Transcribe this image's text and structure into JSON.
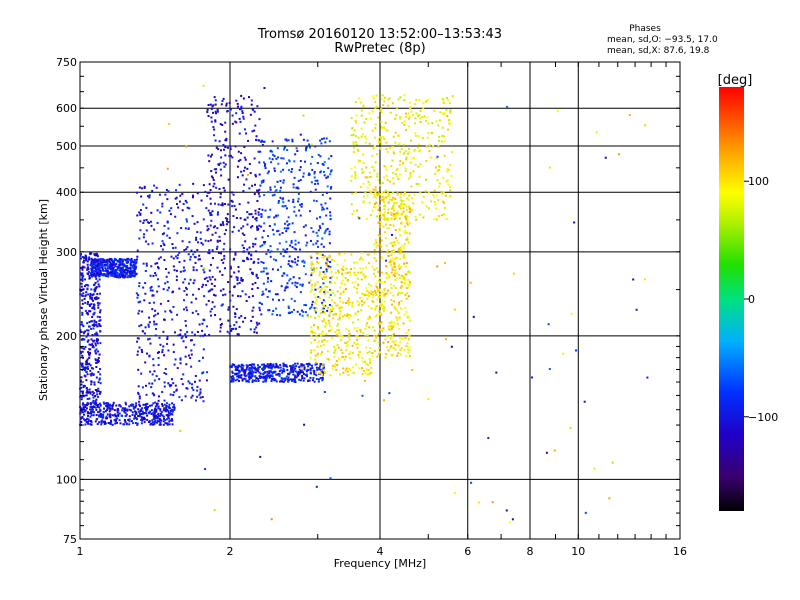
{
  "chart_data": {
    "type": "scatter",
    "title": "Tromsø 20160120 13:52:00–13:53:43",
    "subtitle": "RwPretec (8p)",
    "xlabel": "Frequency [MHz]",
    "ylabel": "Stationary phase Virtual Height [km]",
    "x_scale": "log",
    "y_scale": "log",
    "xlim": [
      1,
      16
    ],
    "ylim": [
      75,
      750
    ],
    "x_ticks": [
      1,
      2,
      4,
      6,
      8,
      10,
      16
    ],
    "x_tick_labels": [
      "1",
      "2",
      "4",
      "6",
      "8",
      "10",
      "16"
    ],
    "y_ticks": [
      75,
      100,
      200,
      300,
      400,
      500,
      600,
      750
    ],
    "y_tick_labels": [
      "75",
      "100",
      "200",
      "300",
      "400",
      "500",
      "600",
      "750"
    ],
    "grid": true,
    "phases_legend": {
      "heading": "Phases",
      "line_o": "mean, sd,O: −93.5, 17.0",
      "line_x": "mean, sd,X: 87.6, 19.8"
    },
    "colorbar": {
      "unit_label": "[deg]",
      "range": [
        -180,
        180
      ],
      "tick_values": [
        100,
        0,
        -100
      ],
      "tick_labels": [
        "100",
        "0",
        "−100"
      ],
      "colormap": "rainbow"
    },
    "traces": [
      {
        "freq_range": [
          1.0,
          1.55
        ],
        "height_range": [
          130,
          145
        ],
        "phase": -100
      },
      {
        "freq_range": [
          1.0,
          1.1
        ],
        "height_range": [
          140,
          300
        ],
        "phase": -105
      },
      {
        "freq_range": [
          1.05,
          1.3
        ],
        "height_range": [
          265,
          290
        ],
        "phase": -95
      },
      {
        "freq_range": [
          1.3,
          1.8
        ],
        "height_range": [
          145,
          420
        ],
        "phase": -100
      },
      {
        "freq_range": [
          1.8,
          2.3
        ],
        "height_range": [
          200,
          640
        ],
        "phase": -110
      },
      {
        "freq_range": [
          2.0,
          3.1
        ],
        "height_range": [
          160,
          175
        ],
        "phase": -95
      },
      {
        "freq_range": [
          2.3,
          3.2
        ],
        "height_range": [
          220,
          520
        ],
        "phase": -80
      },
      {
        "freq_range": [
          2.9,
          3.9
        ],
        "height_range": [
          165,
          300
        ],
        "phase": 95
      },
      {
        "freq_range": [
          3.5,
          5.6
        ],
        "height_range": [
          350,
          640
        ],
        "phase": 90
      },
      {
        "freq_range": [
          3.9,
          4.6
        ],
        "height_range": [
          180,
          400
        ],
        "phase": 100
      }
    ],
    "point_count": 4200
  }
}
